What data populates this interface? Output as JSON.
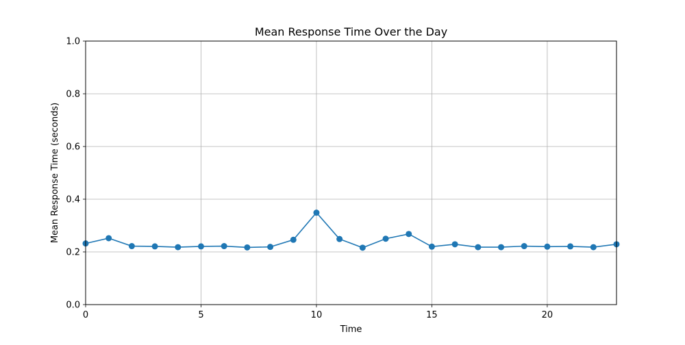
{
  "chart_data": {
    "type": "line",
    "title": "Mean Response Time Over the Day",
    "xlabel": "Time",
    "ylabel": "Mean Response Time (seconds)",
    "xlim": [
      0,
      23
    ],
    "ylim": [
      0,
      1
    ],
    "xticks": [
      0,
      5,
      10,
      15,
      20
    ],
    "yticks": [
      0,
      0.2,
      0.4,
      0.6,
      0.8,
      1.0
    ],
    "xtick_labels": [
      "0",
      "5",
      "10",
      "15",
      "20"
    ],
    "ytick_labels": [
      "0.0",
      "0.2",
      "0.4",
      "0.6",
      "0.8",
      "1.0"
    ],
    "grid": true,
    "series": [
      {
        "color": "#1f77b4",
        "marker": "circle",
        "x": [
          0,
          1,
          2,
          3,
          4,
          5,
          6,
          7,
          8,
          9,
          10,
          11,
          12,
          13,
          14,
          15,
          16,
          17,
          18,
          19,
          20,
          21,
          22,
          23
        ],
        "values": [
          0.232,
          0.252,
          0.222,
          0.221,
          0.218,
          0.221,
          0.222,
          0.217,
          0.219,
          0.246,
          0.349,
          0.249,
          0.216,
          0.25,
          0.268,
          0.22,
          0.229,
          0.218,
          0.218,
          0.222,
          0.22,
          0.221,
          0.218,
          0.229
        ]
      }
    ]
  }
}
